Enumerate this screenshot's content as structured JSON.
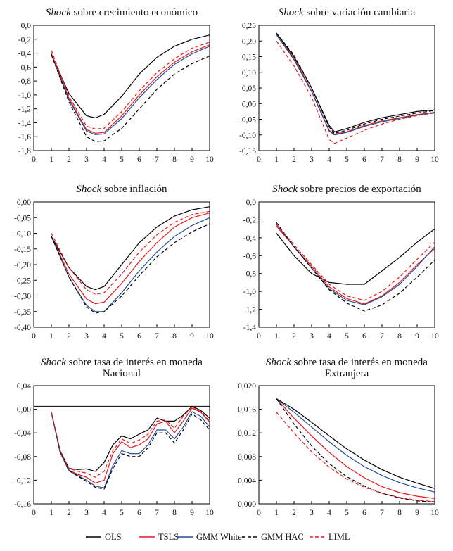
{
  "legend": [
    {
      "name": "OLS",
      "color": "#000000",
      "dash": "solid"
    },
    {
      "name": "TSLS",
      "color": "#e41a1c",
      "dash": "solid"
    },
    {
      "name": "GMM White",
      "color": "#1f4e9c",
      "dash": "solid"
    },
    {
      "name": "GMM HAC",
      "color": "#000000",
      "dash": "dashed"
    },
    {
      "name": "LIML",
      "color": "#e41a1c",
      "dash": "dashed"
    }
  ],
  "chart_data": [
    {
      "type": "line",
      "title_italic": "Shock",
      "title_rest": " sobre crecimiento económico",
      "title_line2": "",
      "x": [
        1,
        2,
        3,
        3.5,
        4,
        5,
        6,
        7,
        8,
        9,
        10
      ],
      "xlim": [
        0,
        10
      ],
      "xticks": [
        "0",
        "1",
        "2",
        "3",
        "4",
        "5",
        "6",
        "7",
        "8",
        "9",
        "10"
      ],
      "ylim": [
        -1.8,
        0.0
      ],
      "yticks": [
        "0,0",
        "-0,2",
        "-0,4",
        "-0,6",
        "-0,8",
        "-1,0",
        "-1,2",
        "-1,4",
        "-1,6",
        "-1,8"
      ],
      "hline": null,
      "series": [
        {
          "name": "OLS",
          "values": [
            -0.42,
            -0.98,
            -1.3,
            -1.33,
            -1.28,
            -1.02,
            -0.7,
            -0.46,
            -0.3,
            -0.2,
            -0.14
          ]
        },
        {
          "name": "TSLS",
          "values": [
            -0.4,
            -1.05,
            -1.5,
            -1.55,
            -1.54,
            -1.3,
            -1.0,
            -0.74,
            -0.53,
            -0.38,
            -0.28
          ]
        },
        {
          "name": "GMM White",
          "values": [
            -0.42,
            -1.07,
            -1.52,
            -1.57,
            -1.56,
            -1.34,
            -1.04,
            -0.78,
            -0.56,
            -0.41,
            -0.3
          ]
        },
        {
          "name": "GMM HAC",
          "values": [
            -0.42,
            -1.1,
            -1.6,
            -1.67,
            -1.66,
            -1.48,
            -1.2,
            -0.92,
            -0.7,
            -0.55,
            -0.44
          ]
        },
        {
          "name": "LIML",
          "values": [
            -0.36,
            -1.02,
            -1.45,
            -1.49,
            -1.48,
            -1.24,
            -0.94,
            -0.68,
            -0.48,
            -0.33,
            -0.24
          ]
        }
      ]
    },
    {
      "type": "line",
      "title_italic": "Shock",
      "title_rest": " sobre variación cambiaria",
      "title_line2": "",
      "x": [
        1,
        2,
        3,
        4,
        4.3,
        5,
        6,
        7,
        8,
        9,
        10
      ],
      "xlim": [
        0,
        10
      ],
      "xticks": [
        "0",
        "1",
        "2",
        "3",
        "4",
        "5",
        "6",
        "7",
        "8",
        "9",
        "10"
      ],
      "ylim": [
        -0.15,
        0.25
      ],
      "yticks": [
        "0,25",
        "0,20",
        "0,15",
        "0,10",
        "0,05",
        "0,00",
        "-0,05",
        "-0,10",
        "-0,15"
      ],
      "hline": null,
      "series": [
        {
          "name": "OLS",
          "values": [
            0.225,
            0.15,
            0.05,
            -0.07,
            -0.09,
            -0.08,
            -0.06,
            -0.045,
            -0.035,
            -0.025,
            -0.02
          ]
        },
        {
          "name": "TSLS",
          "values": [
            0.22,
            0.145,
            0.04,
            -0.085,
            -0.098,
            -0.09,
            -0.07,
            -0.055,
            -0.045,
            -0.035,
            -0.028
          ]
        },
        {
          "name": "GMM White",
          "values": [
            0.22,
            0.14,
            0.038,
            -0.088,
            -0.1,
            -0.092,
            -0.073,
            -0.058,
            -0.047,
            -0.037,
            -0.028
          ]
        },
        {
          "name": "GMM HAC",
          "values": [
            0.225,
            0.155,
            0.05,
            -0.075,
            -0.095,
            -0.085,
            -0.065,
            -0.05,
            -0.04,
            -0.03,
            -0.022
          ]
        },
        {
          "name": "LIML",
          "values": [
            0.2,
            0.12,
            0.02,
            -0.115,
            -0.127,
            -0.11,
            -0.085,
            -0.065,
            -0.05,
            -0.038,
            -0.03
          ]
        }
      ]
    },
    {
      "type": "line",
      "title_italic": "Shock",
      "title_rest": " sobre inflación",
      "title_line2": "",
      "x": [
        1,
        2,
        3,
        3.5,
        4,
        5,
        6,
        7,
        8,
        9,
        10
      ],
      "xlim": [
        0,
        10
      ],
      "xticks": [
        "0",
        "1",
        "2",
        "3",
        "4",
        "5",
        "6",
        "7",
        "8",
        "9",
        "10"
      ],
      "ylim": [
        -0.4,
        0.0
      ],
      "yticks": [
        "0,00",
        "-0,05",
        "-0,10",
        "-0,15",
        "-0,20",
        "-0,25",
        "-0,30",
        "-0,35",
        "-0,40"
      ],
      "hline": null,
      "series": [
        {
          "name": "OLS",
          "values": [
            -0.11,
            -0.21,
            -0.27,
            -0.28,
            -0.27,
            -0.2,
            -0.13,
            -0.08,
            -0.045,
            -0.025,
            -0.015
          ]
        },
        {
          "name": "TSLS",
          "values": [
            -0.11,
            -0.23,
            -0.31,
            -0.325,
            -0.32,
            -0.26,
            -0.19,
            -0.13,
            -0.08,
            -0.05,
            -0.035
          ]
        },
        {
          "name": "GMM White",
          "values": [
            -0.11,
            -0.24,
            -0.33,
            -0.35,
            -0.35,
            -0.29,
            -0.22,
            -0.16,
            -0.11,
            -0.075,
            -0.05
          ]
        },
        {
          "name": "GMM HAC",
          "values": [
            -0.11,
            -0.24,
            -0.335,
            -0.355,
            -0.35,
            -0.3,
            -0.235,
            -0.175,
            -0.13,
            -0.095,
            -0.07
          ]
        },
        {
          "name": "LIML",
          "values": [
            -0.1,
            -0.21,
            -0.28,
            -0.295,
            -0.29,
            -0.23,
            -0.16,
            -0.105,
            -0.065,
            -0.04,
            -0.03
          ]
        }
      ]
    },
    {
      "type": "line",
      "title_italic": "Shock",
      "title_rest": " sobre precios de exportación",
      "title_line2": "",
      "x": [
        1,
        2,
        3,
        4,
        5,
        6,
        7,
        8,
        9,
        10
      ],
      "xlim": [
        0,
        10
      ],
      "xticks": [
        "0",
        "1",
        "2",
        "3",
        "4",
        "5",
        "6",
        "7",
        "8",
        "9",
        "10"
      ],
      "ylim": [
        -1.4,
        0.0
      ],
      "yticks": [
        "0,0",
        "-0,2",
        "-0,4",
        "-0,6",
        "-0,8",
        "-1,0",
        "-1,2",
        "-1,4"
      ],
      "hline": null,
      "series": [
        {
          "name": "OLS",
          "values": [
            -0.35,
            -0.6,
            -0.8,
            -0.9,
            -0.92,
            -0.92,
            -0.77,
            -0.62,
            -0.45,
            -0.3
          ]
        },
        {
          "name": "TSLS",
          "values": [
            -0.27,
            -0.5,
            -0.72,
            -0.95,
            -1.08,
            -1.14,
            -1.05,
            -0.9,
            -0.7,
            -0.52
          ]
        },
        {
          "name": "GMM White",
          "values": [
            -0.25,
            -0.5,
            -0.74,
            -0.97,
            -1.1,
            -1.15,
            -1.06,
            -0.92,
            -0.72,
            -0.5
          ]
        },
        {
          "name": "GMM HAC",
          "values": [
            -0.23,
            -0.5,
            -0.74,
            -0.98,
            -1.13,
            -1.22,
            -1.15,
            -1.02,
            -0.84,
            -0.65
          ]
        },
        {
          "name": "LIML",
          "values": [
            -0.25,
            -0.48,
            -0.7,
            -0.92,
            -1.05,
            -1.1,
            -1.0,
            -0.84,
            -0.64,
            -0.45
          ]
        }
      ]
    },
    {
      "type": "line",
      "title_italic": "Shock",
      "title_rest": " sobre tasa de interés en moneda",
      "title_line2": "Nacional",
      "x": [
        1,
        1.5,
        2,
        2.5,
        3,
        3.5,
        4,
        4.5,
        5,
        5.5,
        6,
        6.5,
        7,
        7.5,
        8,
        8.5,
        9,
        9.5,
        10
      ],
      "xlim": [
        0,
        10
      ],
      "xticks": [
        "0",
        "1",
        "2",
        "3",
        "4",
        "5",
        "6",
        "7",
        "8",
        "9",
        "10"
      ],
      "ylim": [
        -0.16,
        0.04
      ],
      "yticks": [
        "0,04",
        "0,00",
        "-0,04",
        "-0,08",
        "-0,12",
        "-0,16"
      ],
      "hline": 0.005,
      "series": [
        {
          "name": "OLS",
          "values": [
            -0.005,
            -0.07,
            -0.1,
            -0.102,
            -0.101,
            -0.105,
            -0.09,
            -0.06,
            -0.045,
            -0.05,
            -0.042,
            -0.035,
            -0.015,
            -0.02,
            -0.02,
            -0.01,
            0.005,
            -0.002,
            -0.015
          ]
        },
        {
          "name": "TSLS",
          "values": [
            -0.005,
            -0.072,
            -0.103,
            -0.11,
            -0.115,
            -0.125,
            -0.12,
            -0.075,
            -0.055,
            -0.065,
            -0.06,
            -0.05,
            -0.025,
            -0.02,
            -0.04,
            -0.02,
            0.002,
            -0.005,
            -0.022
          ]
        },
        {
          "name": "GMM White",
          "values": [
            -0.005,
            -0.073,
            -0.104,
            -0.112,
            -0.12,
            -0.13,
            -0.133,
            -0.095,
            -0.07,
            -0.075,
            -0.075,
            -0.06,
            -0.035,
            -0.035,
            -0.05,
            -0.03,
            -0.004,
            -0.012,
            -0.03
          ]
        },
        {
          "name": "GMM HAC",
          "values": [
            -0.005,
            -0.073,
            -0.104,
            -0.113,
            -0.122,
            -0.132,
            -0.135,
            -0.1,
            -0.075,
            -0.08,
            -0.08,
            -0.065,
            -0.04,
            -0.04,
            -0.057,
            -0.035,
            -0.008,
            -0.018,
            -0.035
          ]
        },
        {
          "name": "LIML",
          "values": [
            -0.005,
            -0.07,
            -0.1,
            -0.105,
            -0.108,
            -0.115,
            -0.105,
            -0.07,
            -0.05,
            -0.058,
            -0.052,
            -0.042,
            -0.02,
            -0.018,
            -0.032,
            -0.012,
            0.004,
            -0.004,
            -0.02
          ]
        }
      ]
    },
    {
      "type": "line",
      "title_italic": "Shock",
      "title_rest": " sobre tasa de interés en moneda",
      "title_line2": "Extranjera",
      "x": [
        1,
        2,
        3,
        4,
        5,
        6,
        7,
        8,
        9,
        10
      ],
      "xlim": [
        0,
        10
      ],
      "xticks": [
        "0",
        "1",
        "2",
        "3",
        "4",
        "5",
        "6",
        "7",
        "8",
        "9",
        "10"
      ],
      "ylim": [
        0.0,
        0.02
      ],
      "yticks": [
        "0,020",
        "0,016",
        "0,012",
        "0,008",
        "0,004",
        "0,000"
      ],
      "hline": null,
      "series": [
        {
          "name": "OLS",
          "values": [
            0.0178,
            0.016,
            0.0138,
            0.0115,
            0.0093,
            0.0074,
            0.0058,
            0.0045,
            0.0035,
            0.0026
          ]
        },
        {
          "name": "TSLS",
          "values": [
            0.0178,
            0.0145,
            0.0115,
            0.0087,
            0.0063,
            0.0044,
            0.0029,
            0.0019,
            0.0013,
            0.0009
          ]
        },
        {
          "name": "GMM White",
          "values": [
            0.0178,
            0.0155,
            0.013,
            0.0105,
            0.0082,
            0.0063,
            0.0048,
            0.0036,
            0.0027,
            0.002
          ]
        },
        {
          "name": "GMM HAC",
          "values": [
            0.0178,
            0.0135,
            0.0098,
            0.0068,
            0.0046,
            0.003,
            0.0018,
            0.001,
            0.0005,
            0.0003
          ]
        },
        {
          "name": "LIML",
          "values": [
            0.0155,
            0.012,
            0.0088,
            0.0062,
            0.0042,
            0.0028,
            0.0018,
            0.0011,
            0.0006,
            0.0004
          ]
        }
      ]
    }
  ]
}
